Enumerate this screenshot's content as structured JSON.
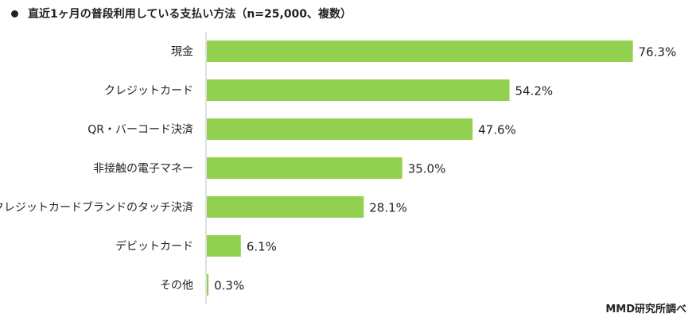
{
  "title": "直近1ヶ月の普段利用している支払い方法（n=25,000、複数）",
  "source": "MMD研究所調べ",
  "colors": {
    "bar": "#92d050",
    "axis": "#bfbfbf",
    "text": "#222222"
  },
  "chart_data": {
    "type": "bar",
    "orientation": "horizontal",
    "title": "直近1ヶ月の普段利用している支払い方法（n=25,000、複数）",
    "categories": [
      "現金",
      "クレジットカード",
      "QR・バーコード決済",
      "非接触の電子マネー",
      "クレジットカードブランドのタッチ決済",
      "デビットカード",
      "その他"
    ],
    "values": [
      76.3,
      54.2,
      47.6,
      35.0,
      28.1,
      6.1,
      0.3
    ],
    "value_labels": [
      "76.3%",
      "54.2%",
      "47.6%",
      "35.0%",
      "28.1%",
      "6.1%",
      "0.3%"
    ],
    "unit": "%",
    "xlim": [
      0,
      100
    ],
    "grid": false,
    "legend": "none"
  }
}
